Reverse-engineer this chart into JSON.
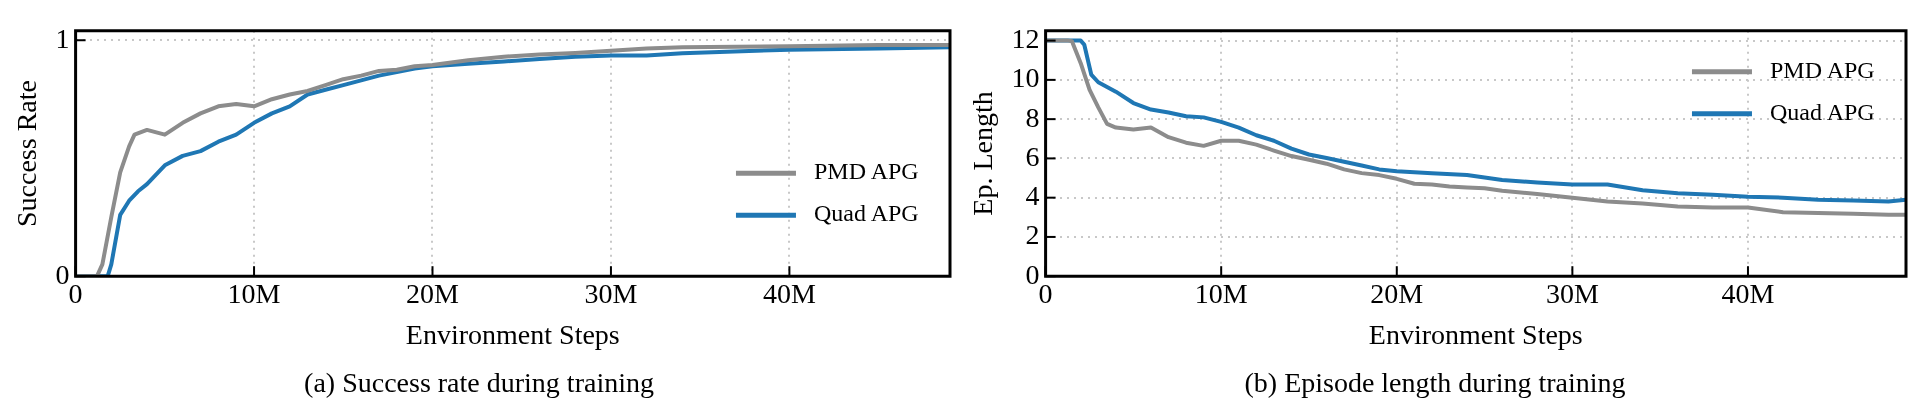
{
  "chart_data": [
    {
      "type": "line",
      "title": "(a) Success rate during training",
      "xlabel": "Environment Steps",
      "ylabel": "Success Rate",
      "xlim": [
        0,
        49000000
      ],
      "ylim": [
        0,
        1.04
      ],
      "xticks": [
        0,
        {
          "value": 10000000,
          "label": "10M"
        },
        {
          "value": 20000000,
          "label": "20M"
        },
        {
          "value": 30000000,
          "label": "30M"
        },
        {
          "value": 40000000,
          "label": "40M"
        }
      ],
      "yticks": [
        0,
        1
      ],
      "grid": true,
      "legend": "bottom right",
      "marker": "none",
      "line_style": "solid",
      "series": [
        {
          "name": "PMD APG",
          "color": "#8c8c8c",
          "x": [
            0,
            1200000,
            1500000,
            2000000,
            2500000,
            3000000,
            3300000,
            4000000,
            5000000,
            6000000,
            7000000,
            8000000,
            9000000,
            10000000,
            11000000,
            12000000,
            13000000,
            14000000,
            15000000,
            16000000,
            17000000,
            18000000,
            19000000,
            20000000,
            22000000,
            24000000,
            26000000,
            28000000,
            30000000,
            32000000,
            34000000,
            40000000,
            45000000,
            49000000
          ],
          "values": [
            0,
            0,
            0.05,
            0.25,
            0.44,
            0.55,
            0.6,
            0.62,
            0.6,
            0.65,
            0.69,
            0.72,
            0.73,
            0.72,
            0.75,
            0.77,
            0.785,
            0.81,
            0.835,
            0.85,
            0.87,
            0.875,
            0.89,
            0.895,
            0.915,
            0.93,
            0.94,
            0.946,
            0.955,
            0.965,
            0.97,
            0.975,
            0.98,
            0.98
          ]
        },
        {
          "name": "Quad APG",
          "color": "#1f77b4",
          "x": [
            0,
            1800000,
            2000000,
            2500000,
            3000000,
            3500000,
            4000000,
            5000000,
            6000000,
            7000000,
            8000000,
            9000000,
            10000000,
            11000000,
            12000000,
            13000000,
            14000000,
            15000000,
            16000000,
            17000000,
            18000000,
            19000000,
            20000000,
            22000000,
            24000000,
            26000000,
            28000000,
            30000000,
            32000000,
            34000000,
            40000000,
            45000000,
            49000000
          ],
          "values": [
            0,
            0,
            0.05,
            0.26,
            0.32,
            0.36,
            0.39,
            0.47,
            0.51,
            0.53,
            0.57,
            0.6,
            0.65,
            0.69,
            0.72,
            0.77,
            0.79,
            0.81,
            0.83,
            0.85,
            0.865,
            0.88,
            0.89,
            0.9,
            0.91,
            0.92,
            0.93,
            0.935,
            0.935,
            0.945,
            0.96,
            0.965,
            0.97
          ]
        }
      ]
    },
    {
      "type": "line",
      "title": "(b) Episode length during training",
      "xlabel": "Environment Steps",
      "ylabel": "Ep. Length",
      "xlim": [
        0,
        49000000
      ],
      "ylim": [
        0,
        12.5
      ],
      "xticks": [
        0,
        {
          "value": 10000000,
          "label": "10M"
        },
        {
          "value": 20000000,
          "label": "20M"
        },
        {
          "value": 30000000,
          "label": "30M"
        },
        {
          "value": 40000000,
          "label": "40M"
        }
      ],
      "yticks": [
        0,
        2,
        4,
        6,
        8,
        10,
        12
      ],
      "grid": true,
      "legend": "top right",
      "marker": "none",
      "line_style": "solid",
      "series": [
        {
          "name": "PMD APG",
          "color": "#8c8c8c",
          "x": [
            0,
            1300000,
            1500000,
            2000000,
            2500000,
            3000000,
            3500000,
            4000000,
            5000000,
            6000000,
            7000000,
            8000000,
            9000000,
            10000000,
            11000000,
            12000000,
            13000000,
            14000000,
            15000000,
            16000000,
            17000000,
            18000000,
            19000000,
            20000000,
            21000000,
            22000000,
            23000000,
            24000000,
            25000000,
            26000000,
            28000000,
            30000000,
            32000000,
            34000000,
            36000000,
            38000000,
            40000000,
            42000000,
            44000000,
            46000000,
            48000000,
            49000000
          ],
          "values": [
            12,
            12,
            11.97,
            10.85,
            9.5,
            8.6,
            7.76,
            7.57,
            7.47,
            7.57,
            7.08,
            6.8,
            6.64,
            6.9,
            6.9,
            6.7,
            6.4,
            6.12,
            5.93,
            5.73,
            5.44,
            5.25,
            5.15,
            4.96,
            4.71,
            4.67,
            4.57,
            4.52,
            4.48,
            4.35,
            4.19,
            4,
            3.8,
            3.7,
            3.55,
            3.5,
            3.5,
            3.26,
            3.22,
            3.18,
            3.13,
            3.13
          ]
        },
        {
          "name": "Quad APG",
          "color": "#1f77b4",
          "x": [
            0,
            2000000,
            2200000,
            2600000,
            3000000,
            4000000,
            5000000,
            6000000,
            7000000,
            8000000,
            9000000,
            10000000,
            11000000,
            12000000,
            13000000,
            14000000,
            15000000,
            16000000,
            17000000,
            18000000,
            19000000,
            20000000,
            22000000,
            24000000,
            26000000,
            28000000,
            30000000,
            32000000,
            34000000,
            36000000,
            38000000,
            40000000,
            42000000,
            44000000,
            46000000,
            48000000,
            49000000
          ],
          "values": [
            12,
            12,
            11.8,
            10.27,
            9.88,
            9.4,
            8.82,
            8.49,
            8.34,
            8.15,
            8.09,
            7.86,
            7.57,
            7.18,
            6.9,
            6.5,
            6.2,
            6.02,
            5.83,
            5.64,
            5.44,
            5.35,
            5.25,
            5.15,
            4.9,
            4.77,
            4.67,
            4.67,
            4.38,
            4.23,
            4.15,
            4.05,
            4,
            3.9,
            3.86,
            3.8,
            3.9
          ]
        }
      ]
    }
  ]
}
